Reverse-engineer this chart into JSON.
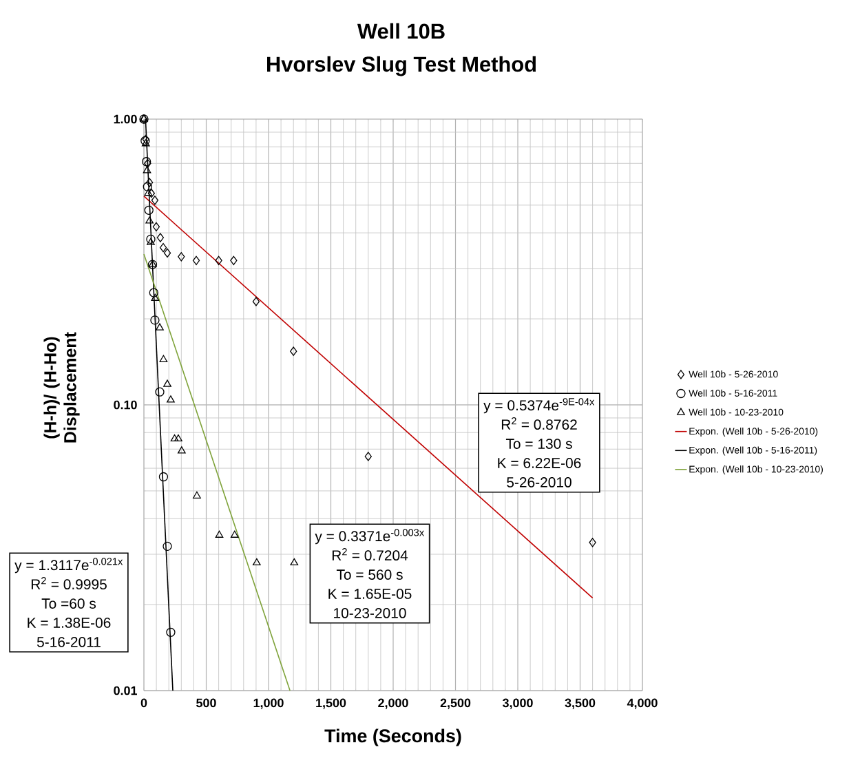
{
  "chart_data": {
    "type": "scatter",
    "title": "Well 10B",
    "subtitle": "Hvorslev Slug Test Method",
    "xlabel": "Time (Seconds)",
    "ylabel": "(H-h)/ (H-Ho) Displacement",
    "log": "y",
    "grid": true,
    "legend": "right",
    "xlim": [
      0,
      4000
    ],
    "ylim": [
      0.01,
      1
    ],
    "xticks": [
      0,
      500,
      {
        "value": 1000,
        "label": "1,000"
      },
      {
        "value": 1500,
        "label": "1,500"
      },
      {
        "value": 2000,
        "label": "2,000"
      },
      {
        "value": 2500,
        "label": "2,500"
      },
      {
        "value": 3000,
        "label": "3,000"
      },
      {
        "value": 3500,
        "label": "3,500"
      },
      {
        "value": 4000,
        "label": "4,000"
      }
    ],
    "yticks": [
      {
        "value": 0.01,
        "label": "0.01"
      },
      {
        "value": 0.1,
        "label": "0.10"
      },
      {
        "value": 1,
        "label": "1.00"
      }
    ],
    "series": [
      {
        "name": "Well 10b - 5-26-2010",
        "marker": "diamond",
        "color": "#000000",
        "x": [
          0,
          15,
          30,
          45,
          60,
          88,
          99,
          132,
          155,
          188,
          300,
          420,
          600,
          720,
          900,
          1200,
          1800,
          3600
        ],
        "values": [
          1.0,
          0.85,
          0.7,
          0.6,
          0.55,
          0.52,
          0.42,
          0.385,
          0.355,
          0.34,
          0.33,
          0.32,
          0.32,
          0.32,
          0.23,
          0.154,
          0.066,
          0.033
        ]
      },
      {
        "name": "Well 10b - 5-16-2011",
        "marker": "circle",
        "color": "#000000",
        "x": [
          0,
          10,
          20,
          29,
          40,
          55,
          69,
          79,
          88,
          127,
          157,
          188,
          215
        ],
        "values": [
          1.0,
          0.84,
          0.71,
          0.58,
          0.48,
          0.38,
          0.31,
          0.247,
          0.198,
          0.111,
          0.056,
          0.032,
          0.016
        ]
      },
      {
        "name": "Well 10b - 10-23-2010",
        "marker": "triangle",
        "color": "#000000",
        "x": [
          0,
          15,
          25,
          35,
          45,
          55,
          70,
          90,
          127,
          157,
          188,
          215,
          246,
          276,
          303,
          425,
          605,
          728,
          905,
          1206
        ],
        "values": [
          1.0,
          0.82,
          0.66,
          0.55,
          0.44,
          0.37,
          0.31,
          0.236,
          0.186,
          0.144,
          0.118,
          0.104,
          0.076,
          0.076,
          0.069,
          0.048,
          0.035,
          0.035,
          0.028,
          0.028
        ]
      },
      {
        "name": "Expon. (Well 10b - 5-26-2010)",
        "type": "line",
        "marker": "none",
        "color": "#c00000",
        "x": [
          0,
          3600
        ],
        "values": [
          0.5374,
          0.0211
        ]
      },
      {
        "name": "Expon. (Well 10b - 5-16-2011)",
        "type": "line",
        "marker": "none",
        "color": "#000000",
        "x": [
          13,
          232
        ],
        "values": [
          1.0,
          0.01
        ]
      },
      {
        "name": "Expon. (Well 10b - 10-23-2010)",
        "type": "line",
        "marker": "none",
        "color": "#7fa33a",
        "x": [
          0,
          1172
        ],
        "values": [
          0.3371,
          0.01
        ]
      }
    ],
    "annotations": [
      "y = 0.5374e$^{-9E-04x}$",
      "R$^{2}$ = 0.8762",
      "To = 130 s",
      "K = 6.22E-06",
      "5-26-2010",
      "y = 0.3371e$^{-0.003x}$",
      "R$^{2}$ = 0.7204",
      "To = 560 s",
      "K = 1.65E-05",
      "10-23-2010",
      "y = 1.3117e$^{-0.021x}$",
      "R$^{2}$ = 0.9995",
      "To =60 s",
      "K = 1.38E-06",
      "5-16-2011"
    ]
  }
}
